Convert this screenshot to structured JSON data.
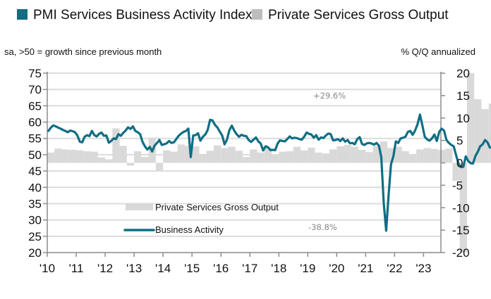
{
  "legend": {
    "pmi_label": "PMI Services Business Activity Index",
    "pso_label": "Private Services Gross Output",
    "pmi_color": "#0f6e84",
    "pso_color": "#bdbdbd"
  },
  "subtitle_left": "sa, >50 = growth since previous month",
  "subtitle_right": "% Q/Q annualized",
  "chart_data": {
    "type": "bar+line",
    "title": "PMI Services Business Activity Index vs Private Services Gross Output",
    "xlabel": "",
    "ylabel_left": "sa, >50 = growth since previous month",
    "ylabel_right": "% Q/Q annualized",
    "x_tick_labels": [
      "'10",
      "'11",
      "'12",
      "'13",
      "'14",
      "'15",
      "'16",
      "'17",
      "'18",
      "'19",
      "'20",
      "'21",
      "'22",
      "'23"
    ],
    "x_range": [
      2010.0,
      2023.6
    ],
    "y_left": {
      "range": [
        20,
        75
      ],
      "ticks": [
        75,
        70,
        65,
        60,
        55,
        50,
        45,
        40,
        35,
        30,
        25,
        20
      ]
    },
    "y_right": {
      "range": [
        -20,
        20
      ],
      "ticks": [
        20,
        15,
        10,
        5,
        0,
        -5,
        -10,
        -15,
        -20
      ]
    },
    "grid": true,
    "inline_legend": {
      "bars_label": "Private Services Gross Output",
      "line_label": "Business Activity",
      "placement": "lower-center"
    },
    "annotations": [
      {
        "text": "+29.6%",
        "x": 2020.5,
        "note": "Private Services Gross Output Q3 2020 (bar clipped at top)"
      },
      {
        "text": "-38.8%",
        "x": 2020.25,
        "note": "Private Services Gross Output Q2 2020 (bar clipped at bottom)"
      }
    ],
    "series": [
      {
        "name": "Private Services Gross Output",
        "axis": "right",
        "type": "bar",
        "frequency": "quarterly",
        "start": 2010.0,
        "values": [
          2.3,
          3.2,
          3.0,
          2.9,
          2.8,
          2.6,
          2.5,
          1.2,
          0.8,
          7.7,
          3.8,
          -0.6,
          2.6,
          1.3,
          5.6,
          -1.7,
          2.8,
          2.5,
          4.1,
          3.8,
          3.7,
          2.0,
          2.7,
          3.9,
          3.3,
          3.6,
          2.7,
          1.3,
          3.0,
          2.3,
          3.4,
          1.7,
          2.5,
          2.6,
          3.6,
          2.8,
          3.4,
          2.3,
          2.1,
          3.0,
          3.7,
          4.0,
          3.6,
          2.9,
          2.4,
          3.8,
          4.8,
          3.3,
          3.6,
          2.6,
          1.8,
          3.0,
          3.3,
          3.1,
          2.9,
          3.2,
          -4.0,
          -38.8,
          29.6,
          14.2,
          12.0,
          13.2,
          9.9,
          8.5,
          8.2,
          6.7,
          4.2,
          4.2,
          8.5,
          8.5
        ]
      },
      {
        "name": "Business Activity",
        "axis": "left",
        "type": "line",
        "frequency": "monthly",
        "start": 2010.0,
        "values": [
          57.3,
          58.3,
          59.0,
          58.7,
          58.3,
          58.0,
          57.6,
          57.3,
          56.9,
          57.4,
          57.2,
          56.9,
          55.9,
          54.0,
          53.8,
          55.5,
          56.0,
          55.7,
          57.3,
          56.0,
          55.6,
          56.4,
          56.8,
          55.8,
          55.9,
          53.7,
          54.2,
          55.0,
          54.8,
          56.3,
          55.8,
          56.7,
          57.4,
          58.4,
          57.9,
          58.7,
          57.3,
          56.9,
          56.3,
          53.9,
          52.5,
          51.6,
          52.4,
          51.0,
          52.8,
          53.6,
          54.5,
          53.0,
          53.2,
          53.5,
          54.2,
          53.6,
          53.8,
          54.8,
          55.8,
          56.5,
          57.0,
          57.3,
          58.0,
          49.3,
          55.9,
          56.0,
          56.6,
          54.3,
          55.5,
          56.2,
          57.6,
          60.7,
          60.5,
          59.2,
          58.4,
          57.1,
          55.9,
          53.2,
          54.6,
          57.5,
          58.9,
          57.4,
          56.3,
          55.5,
          56.1,
          55.8,
          55.7,
          54.5,
          53.9,
          54.6,
          55.3,
          54.1,
          53.4,
          51.3,
          52.6,
          52.3,
          51.4,
          51.5,
          51.4,
          53.4,
          54.4,
          54.2,
          54.1,
          54.8,
          55.6,
          55.0,
          55.2,
          55.1,
          54.8,
          54.6,
          55.5,
          56.8,
          56.4,
          56.2,
          55.2,
          56.0,
          54.6,
          55.3,
          55.1,
          55.9,
          56.5,
          56.3,
          54.4,
          54.5,
          54.8,
          54.2,
          55.0,
          54.0,
          54.5,
          53.5,
          53.6,
          53.2,
          54.8,
          55.4,
          53.3,
          53.0,
          53.5,
          53.6,
          53.4,
          53.1,
          53.6,
          52.8,
          49.2,
          35.0,
          26.7,
          37.5,
          47.0,
          49.5,
          54.1,
          53.6,
          55.0,
          55.2,
          55.5,
          57.0,
          57.3,
          56.1,
          57.4,
          59.3,
          62.3,
          59.0,
          55.5,
          54.7,
          54.3,
          55.0,
          56.2,
          54.2,
          57.0,
          58.0,
          57.4,
          54.5,
          53.6,
          53.0,
          52.6,
          49.9,
          47.2,
          46.2,
          46.3,
          49.5,
          48.1,
          47.4,
          47.3,
          49.6,
          50.9,
          52.6,
          53.2,
          54.5,
          53.8,
          52.2
        ]
      }
    ]
  }
}
